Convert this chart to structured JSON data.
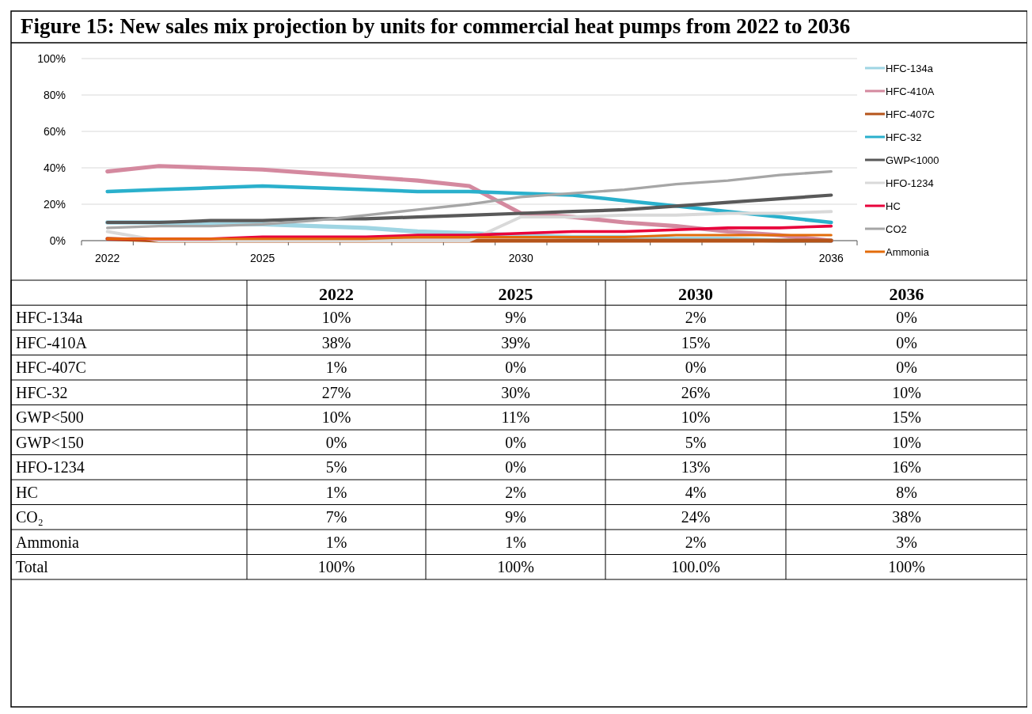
{
  "chart_data": [
    {
      "type": "line",
      "title": "Figure 15: New sales mix projection by units for commercial heat pumps from 2022 to 2036",
      "categories": [
        "2022",
        null,
        null,
        "2025",
        null,
        null,
        null,
        null,
        "2030",
        null,
        null,
        null,
        null,
        null,
        "2036"
      ],
      "series": [
        {
          "name": "HFC-134a",
          "color": "#9fd5e3",
          "values": [
            10,
            10,
            9,
            9,
            8,
            7,
            5,
            4,
            3,
            2,
            2,
            1,
            1,
            0,
            0
          ]
        },
        {
          "name": "HFC-410A",
          "color": "#d4899f",
          "values": [
            38,
            41,
            40,
            39,
            37,
            35,
            33,
            30,
            15,
            13,
            10,
            8,
            5,
            3,
            0
          ]
        },
        {
          "name": "HFC-407C",
          "color": "#b5541a",
          "values": [
            1,
            0,
            0,
            0,
            0,
            0,
            0,
            0,
            0,
            0,
            0,
            0,
            0,
            0,
            0
          ]
        },
        {
          "name": "HFC-32",
          "color": "#2ab0cc",
          "values": [
            27,
            28,
            29,
            30,
            29,
            28,
            27,
            27,
            26,
            25,
            22,
            19,
            16,
            13,
            10
          ]
        },
        {
          "name": "GWP<1000",
          "color": "#595959",
          "values": [
            10,
            10,
            11,
            11,
            12,
            12,
            13,
            14,
            15,
            16,
            17,
            19,
            21,
            23,
            25
          ]
        },
        {
          "name": "HFO-1234",
          "color": "#d9d9d9",
          "values": [
            5,
            0,
            0,
            0,
            0,
            0,
            0,
            0,
            13,
            13,
            14,
            14,
            15,
            15,
            16
          ]
        },
        {
          "name": "HC",
          "color": "#e8003b",
          "values": [
            1,
            1,
            1,
            2,
            2,
            2,
            3,
            3,
            4,
            5,
            5,
            6,
            7,
            7,
            8
          ]
        },
        {
          "name": "CO2",
          "color": "#a6a6a6",
          "values": [
            7,
            8,
            8,
            9,
            11,
            14,
            17,
            20,
            24,
            26,
            28,
            31,
            33,
            36,
            38
          ]
        },
        {
          "name": "Ammonia",
          "color": "#e36c0a",
          "values": [
            1,
            1,
            1,
            1,
            1,
            1,
            2,
            2,
            2,
            2,
            2,
            3,
            3,
            3,
            3
          ]
        }
      ],
      "ylim": [
        0,
        100
      ],
      "yticks": [
        {
          "value": 0,
          "label": "0%"
        },
        {
          "value": 20,
          "label": "20%"
        },
        {
          "value": 40,
          "label": "40%"
        },
        {
          "value": 60,
          "label": "60%"
        },
        {
          "value": 80,
          "label": "80%"
        },
        {
          "value": 100,
          "label": "100%"
        }
      ],
      "grid": "y",
      "legend": "right"
    },
    {
      "type": "other",
      "categories": [
        "2022",
        "2025",
        "2030",
        "2036"
      ],
      "y_categories": [
        "HFC-134a",
        "HFC-410A",
        "HFC-407C",
        "HFC-32",
        "GWP<500",
        "GWP<150",
        "HFO-1234",
        "HC",
        "CO₂",
        "Ammonia",
        "Total"
      ],
      "cell_labels": [
        [
          "10%",
          "9%",
          "2%",
          "0%"
        ],
        [
          "38%",
          "39%",
          "15%",
          "0%"
        ],
        [
          "1%",
          "0%",
          "0%",
          "0%"
        ],
        [
          "27%",
          "30%",
          "26%",
          "10%"
        ],
        [
          "10%",
          "11%",
          "10%",
          "15%"
        ],
        [
          "0%",
          "0%",
          "5%",
          "10%"
        ],
        [
          "5%",
          "0%",
          "13%",
          "16%"
        ],
        [
          "1%",
          "2%",
          "4%",
          "8%"
        ],
        [
          "7%",
          "9%",
          "24%",
          "38%"
        ],
        [
          "1%",
          "1%",
          "2%",
          "3%"
        ],
        [
          "100%",
          "100%",
          "100.0%",
          "100%"
        ]
      ]
    }
  ]
}
